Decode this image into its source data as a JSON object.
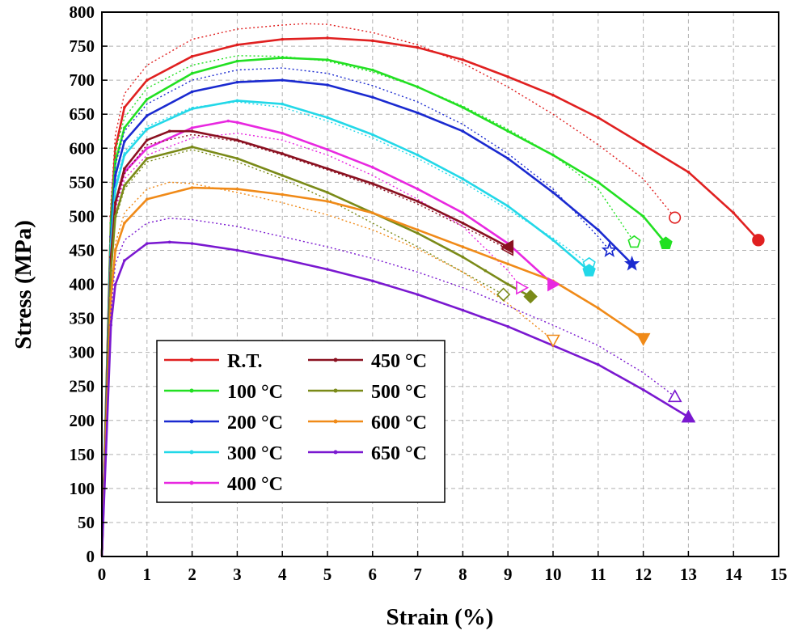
{
  "chart_data": {
    "type": "line",
    "title": "",
    "xlabel": "Strain (%)",
    "ylabel": "Stress (MPa)",
    "xlim": [
      0,
      15
    ],
    "ylim": [
      0,
      800
    ],
    "xticks": [
      0,
      1,
      2,
      3,
      4,
      5,
      6,
      7,
      8,
      9,
      10,
      11,
      12,
      13,
      14,
      15
    ],
    "yticks": [
      0,
      50,
      100,
      150,
      200,
      250,
      300,
      350,
      400,
      450,
      500,
      550,
      600,
      650,
      700,
      750,
      800
    ],
    "grid": true,
    "legend_position": "lower-left",
    "series": [
      {
        "name": "R.T.",
        "color": "#e02020",
        "marker": "circle",
        "x": [
          0,
          0.2,
          0.3,
          0.5,
          1,
          2,
          3,
          4,
          5,
          6,
          7,
          8,
          9,
          10,
          11,
          12,
          13,
          14,
          14.55
        ],
        "y": [
          0,
          500,
          600,
          660,
          700,
          735,
          752,
          760,
          762,
          758,
          748,
          730,
          705,
          678,
          645,
          605,
          565,
          505,
          465
        ],
        "repeat_x": [
          0,
          0.2,
          0.3,
          0.5,
          1,
          2,
          3,
          4,
          4.5,
          5,
          6,
          7,
          8,
          9,
          10,
          11,
          12,
          12.7
        ],
        "repeat_y": [
          0,
          520,
          620,
          680,
          722,
          760,
          775,
          781,
          783,
          782,
          770,
          752,
          725,
          690,
          650,
          605,
          555,
          498
        ]
      },
      {
        "name": "100 °C",
        "color": "#22e022",
        "marker": "pentagon",
        "x": [
          0,
          0.2,
          0.3,
          0.5,
          1,
          2,
          3,
          4,
          5,
          6,
          7,
          8,
          9,
          10,
          11,
          12,
          12.5
        ],
        "y": [
          0,
          490,
          580,
          630,
          672,
          710,
          728,
          733,
          730,
          715,
          690,
          660,
          625,
          590,
          550,
          500,
          460
        ],
        "repeat_x": [
          0,
          0.2,
          0.3,
          0.5,
          1,
          2,
          3,
          4,
          5,
          6,
          7,
          8,
          9,
          10,
          11,
          11.8
        ],
        "repeat_y": [
          0,
          500,
          595,
          645,
          688,
          722,
          736,
          735,
          728,
          712,
          690,
          662,
          628,
          590,
          540,
          462
        ]
      },
      {
        "name": "200 °C",
        "color": "#1a2ad0",
        "marker": "star",
        "x": [
          0,
          0.2,
          0.3,
          0.5,
          1,
          2,
          3,
          4,
          5,
          6,
          7,
          8,
          9,
          10,
          11,
          11.75
        ],
        "y": [
          0,
          470,
          560,
          610,
          648,
          683,
          697,
          700,
          693,
          675,
          652,
          625,
          585,
          535,
          480,
          430
        ],
        "repeat_x": [
          0,
          0.2,
          0.3,
          0.5,
          1,
          2,
          3,
          4,
          5,
          6,
          7,
          8,
          9,
          10,
          11,
          11.25
        ],
        "repeat_y": [
          0,
          480,
          575,
          625,
          665,
          700,
          715,
          718,
          710,
          692,
          668,
          635,
          592,
          540,
          470,
          450
        ]
      },
      {
        "name": "300 °C",
        "color": "#22d8e8",
        "marker": "pentagon",
        "x": [
          0,
          0.2,
          0.3,
          0.5,
          1,
          2,
          3,
          4,
          5,
          6,
          7,
          8,
          9,
          10,
          10.8
        ],
        "y": [
          0,
          460,
          540,
          590,
          628,
          658,
          670,
          665,
          645,
          620,
          590,
          555,
          515,
          465,
          420
        ],
        "repeat_x": [
          0,
          0.2,
          0.3,
          0.5,
          1,
          2,
          3,
          4,
          5,
          6,
          7,
          8,
          9,
          10,
          10.8
        ],
        "repeat_y": [
          0,
          465,
          545,
          595,
          632,
          660,
          668,
          660,
          640,
          615,
          585,
          550,
          510,
          468,
          430
        ]
      },
      {
        "name": "400 °C",
        "color": "#e828e0",
        "marker": "triangle-right",
        "x": [
          0,
          0.2,
          0.3,
          0.5,
          1,
          2,
          2.8,
          3,
          4,
          5,
          6,
          7,
          8,
          9,
          10
        ],
        "y": [
          0,
          440,
          520,
          565,
          600,
          630,
          640,
          638,
          622,
          598,
          572,
          540,
          505,
          460,
          400
        ],
        "repeat_x": [
          0,
          0.2,
          0.3,
          0.5,
          1,
          2,
          3,
          4,
          5,
          6,
          7,
          8,
          9,
          9.3
        ],
        "repeat_y": [
          0,
          435,
          510,
          555,
          590,
          615,
          622,
          612,
          590,
          560,
          525,
          485,
          420,
          395
        ]
      },
      {
        "name": "450 °C",
        "color": "#8a1020",
        "marker": "triangle-left",
        "x": [
          0,
          0.2,
          0.3,
          0.5,
          1,
          1.5,
          2,
          3,
          4,
          5,
          6,
          7,
          8,
          9
        ],
        "y": [
          0,
          440,
          520,
          570,
          612,
          625,
          625,
          612,
          592,
          570,
          548,
          522,
          490,
          455
        ],
        "repeat_x": [
          0,
          0.2,
          0.3,
          0.5,
          1,
          2,
          3,
          4,
          5,
          6,
          7,
          8,
          9
        ],
        "repeat_y": [
          0,
          435,
          515,
          562,
          605,
          620,
          610,
          590,
          568,
          545,
          518,
          485,
          452
        ]
      },
      {
        "name": "500 °C",
        "color": "#7a8a18",
        "marker": "diamond",
        "x": [
          0,
          0.2,
          0.3,
          0.5,
          1,
          2,
          3,
          4,
          5,
          6,
          7,
          8,
          8.5,
          9,
          9.5
        ],
        "y": [
          0,
          420,
          500,
          545,
          585,
          602,
          585,
          560,
          535,
          505,
          475,
          440,
          420,
          400,
          382
        ],
        "repeat_x": [
          0,
          0.2,
          0.3,
          0.5,
          1,
          2,
          3,
          4,
          5,
          6,
          7,
          8,
          8.9
        ],
        "repeat_y": [
          0,
          415,
          495,
          540,
          580,
          598,
          580,
          555,
          525,
          490,
          455,
          418,
          385
        ]
      },
      {
        "name": "600 °C",
        "color": "#f08a18",
        "marker": "triangle-down",
        "x": [
          0,
          0.2,
          0.3,
          0.5,
          1,
          2,
          3,
          4,
          5,
          6,
          7,
          8,
          9,
          10,
          11,
          12
        ],
        "y": [
          0,
          380,
          450,
          490,
          525,
          542,
          540,
          532,
          522,
          505,
          480,
          455,
          430,
          405,
          365,
          320
        ],
        "repeat_x": [
          0,
          0.2,
          0.3,
          0.5,
          1,
          1.5,
          2,
          3,
          4,
          5,
          6,
          7,
          8,
          9,
          10
        ],
        "repeat_y": [
          0,
          385,
          460,
          505,
          540,
          550,
          548,
          535,
          520,
          502,
          480,
          452,
          418,
          372,
          318
        ]
      },
      {
        "name": "650 °C",
        "color": "#7a18d0",
        "marker": "triangle-up",
        "x": [
          0,
          0.2,
          0.3,
          0.5,
          1,
          1.5,
          2,
          3,
          4,
          5,
          6,
          7,
          8,
          9,
          10,
          11,
          12,
          13
        ],
        "y": [
          0,
          340,
          400,
          435,
          460,
          462,
          460,
          450,
          437,
          422,
          405,
          385,
          362,
          338,
          310,
          282,
          245,
          205
        ],
        "repeat_x": [
          0,
          0.2,
          0.3,
          0.5,
          1,
          1.5,
          2,
          3,
          4,
          5,
          6,
          7,
          8,
          9,
          10,
          11,
          12,
          12.7
        ],
        "repeat_y": [
          0,
          360,
          430,
          465,
          490,
          497,
          495,
          485,
          470,
          455,
          438,
          418,
          395,
          368,
          340,
          310,
          270,
          235
        ]
      }
    ]
  }
}
